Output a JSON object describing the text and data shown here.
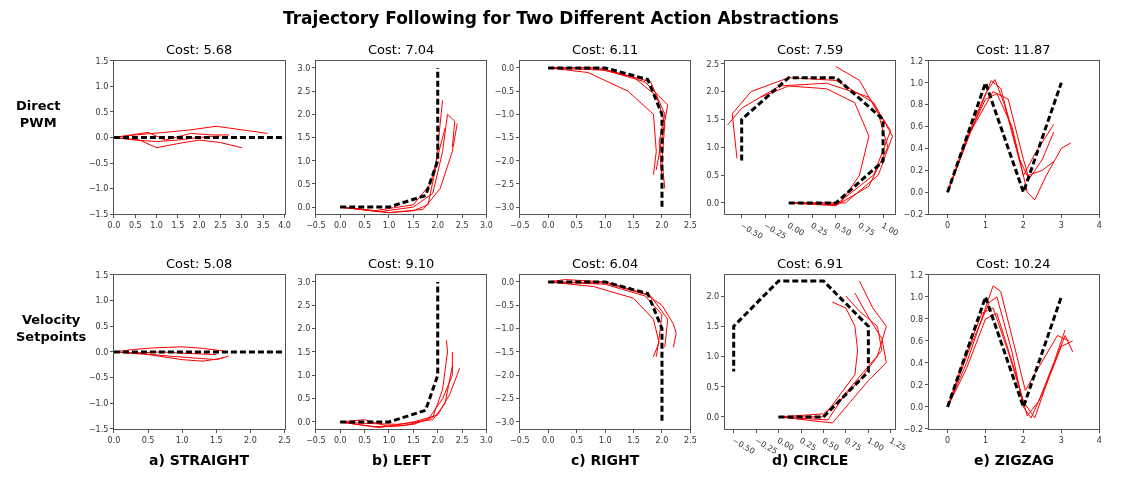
{
  "chart_data": [
    {
      "type": "line",
      "title": "Cost: 5.68",
      "ylabel": "Direct\nPWM",
      "annotations": [
        "Trajectory Following for Two Different Action Abstractions"
      ],
      "xlim": [
        0,
        4
      ],
      "xticks": [
        {
          "value": 0,
          "label": "0.0"
        },
        0.5,
        {
          "value": 1,
          "label": "1.0"
        },
        1.5,
        {
          "value": 2,
          "label": "2.0"
        },
        2.5,
        {
          "value": 3,
          "label": "3.0"
        },
        3.5,
        {
          "value": 4,
          "label": "4.0"
        }
      ],
      "ylim": [
        -1.5,
        1.5
      ],
      "yticks": [
        {
          "value": -1.5,
          "label": "−1.5"
        },
        {
          "value": -1,
          "label": "−1.0"
        },
        {
          "value": -0.5,
          "label": "−0.5"
        },
        {
          "value": 0,
          "label": "0.0"
        },
        0.5,
        {
          "value": 1,
          "label": "1.0"
        },
        1.5
      ],
      "series": [
        {
          "color": "#ff0000",
          "line_style": "solid",
          "x": [
            0,
            0.5,
            1.2,
            1.8,
            2.4,
            3.0,
            3.6
          ],
          "values": [
            0,
            0.05,
            0.1,
            0.15,
            0.22,
            0.15,
            0.08
          ]
        },
        {
          "color": "#ff0000",
          "line_style": "solid",
          "x": [
            0,
            0.6,
            1.0,
            1.5,
            2.0,
            2.5,
            3.0
          ],
          "values": [
            0,
            -0.05,
            -0.2,
            -0.12,
            -0.05,
            -0.1,
            -0.2
          ]
        },
        {
          "color": "#ff0000",
          "line_style": "solid",
          "x": [
            0,
            0.8,
            1.2,
            1.8,
            2.3,
            2.7
          ],
          "values": [
            0,
            0.1,
            -0.05,
            0.08,
            0.05,
            0.05
          ]
        },
        {
          "color": "#ff0000",
          "line_style": "solid",
          "x": [
            0,
            0.5,
            1.0,
            1.5,
            2.0,
            2.5
          ],
          "values": [
            0,
            -0.05,
            -0.08,
            -0.05,
            0.0,
            0.03
          ]
        },
        {
          "color": "#000000",
          "line_style": "dashed",
          "x": [
            0,
            4
          ],
          "values": [
            0,
            0
          ]
        }
      ]
    },
    {
      "type": "line",
      "title": "Cost: 7.04",
      "xlim": [
        -0.5,
        3
      ],
      "xticks": [
        {
          "value": -0.5,
          "label": "−0.5"
        },
        {
          "value": 0,
          "label": "0.0"
        },
        0.5,
        {
          "value": 1,
          "label": "1.0"
        },
        1.5,
        {
          "value": 2,
          "label": "2.0"
        },
        2.5,
        {
          "value": 3,
          "label": "3.0"
        }
      ],
      "ylim": [
        -0.15,
        3.15
      ],
      "yticks": [
        {
          "value": 0,
          "label": "0.0"
        },
        0.5,
        {
          "value": 1,
          "label": "1.0"
        },
        1.5,
        {
          "value": 2,
          "label": "2.0"
        },
        2.5,
        {
          "value": 3,
          "label": "3.0"
        }
      ],
      "series": [
        {
          "color": "#ff0000",
          "line_style": "solid",
          "x": [
            0,
            0.5,
            1,
            1.5,
            1.8,
            1.95,
            2.05,
            2.1
          ],
          "values": [
            0,
            -0.05,
            -0.12,
            -0.08,
            0.05,
            0.8,
            1.8,
            2.3
          ]
        },
        {
          "color": "#ff0000",
          "line_style": "solid",
          "x": [
            0,
            0.8,
            1.5,
            1.9,
            2.1,
            2.2,
            2.35,
            2.3
          ],
          "values": [
            0,
            -0.1,
            0,
            0.3,
            1.2,
            2.0,
            1.85,
            1.3
          ]
        },
        {
          "color": "#ff0000",
          "line_style": "solid",
          "x": [
            0,
            1,
            1.7,
            2.05,
            2.3,
            2.4
          ],
          "values": [
            0,
            -0.12,
            -0.05,
            0.4,
            1.2,
            1.8
          ]
        },
        {
          "color": "#ff0000",
          "line_style": "solid",
          "x": [
            0,
            0.7,
            1.5,
            1.85,
            2.0,
            2.15
          ],
          "values": [
            0,
            -0.08,
            0.05,
            0.5,
            1.1,
            1.7
          ]
        },
        {
          "color": "#000000",
          "line_style": "dashed",
          "x": [
            0,
            1,
            1.75,
            2,
            2
          ],
          "values": [
            0,
            0,
            0.25,
            1,
            3
          ]
        }
      ]
    },
    {
      "type": "line",
      "title": "Cost: 6.11",
      "xlim": [
        -0.5,
        2.5
      ],
      "xticks": [
        {
          "value": -0.5,
          "label": "−0.5"
        },
        {
          "value": 0,
          "label": "0.0"
        },
        0.5,
        {
          "value": 1,
          "label": "1.0"
        },
        1.5,
        {
          "value": 2,
          "label": "2.0"
        },
        2.5
      ],
      "ylim": [
        -3.15,
        0.15
      ],
      "yticks": [
        {
          "value": -3,
          "label": "−3.0"
        },
        {
          "value": -2.5,
          "label": "−2.5"
        },
        {
          "value": -2,
          "label": "−2.0"
        },
        {
          "value": -1.5,
          "label": "−1.5"
        },
        {
          "value": -1,
          "label": "−1.0"
        },
        {
          "value": -0.5,
          "label": "−0.5"
        },
        {
          "value": 0,
          "label": "0.0"
        }
      ],
      "series": [
        {
          "color": "#ff0000",
          "line_style": "solid",
          "x": [
            0,
            0.8,
            1.5,
            1.9,
            2.05,
            2.0,
            2.05
          ],
          "values": [
            0,
            0,
            -0.2,
            -0.6,
            -1.2,
            -2.0,
            -2.6
          ]
        },
        {
          "color": "#ff0000",
          "line_style": "solid",
          "x": [
            0,
            1,
            1.7,
            2.1,
            2.0,
            1.9
          ],
          "values": [
            0,
            -0.05,
            -0.3,
            -0.8,
            -1.5,
            -2.2
          ]
        },
        {
          "color": "#ff0000",
          "line_style": "solid",
          "x": [
            0,
            0.7,
            1.4,
            1.85,
            1.9,
            1.85
          ],
          "values": [
            0,
            -0.1,
            -0.5,
            -1.0,
            -1.8,
            -2.3
          ]
        },
        {
          "color": "#ff0000",
          "line_style": "solid",
          "x": [
            0,
            0.9,
            1.8,
            2.05,
            1.95,
            2.0
          ],
          "values": [
            0,
            0,
            -0.3,
            -1.0,
            -1.6,
            -2.4
          ]
        },
        {
          "color": "#000000",
          "line_style": "dashed",
          "x": [
            0,
            1,
            1.75,
            2,
            2
          ],
          "values": [
            0,
            0,
            -0.25,
            -1,
            -3
          ]
        }
      ]
    },
    {
      "type": "line",
      "title": "Cost: 7.59",
      "xlim": [
        -0.68,
        1.13
      ],
      "xticks": [
        {
          "value": -0.5,
          "label": "−0.50"
        },
        {
          "value": -0.25,
          "label": "−0.25"
        },
        {
          "value": 0,
          "label": "0.00"
        },
        0.25,
        {
          "value": 0.5,
          "label": "0.50"
        },
        0.75,
        {
          "value": 1,
          "label": "1.00"
        }
      ],
      "ylim": [
        -0.2,
        2.55
      ],
      "yticks": [
        {
          "value": 0,
          "label": "0.0"
        },
        0.5,
        {
          "value": 1,
          "label": "1.0"
        },
        1.5,
        {
          "value": 2,
          "label": "2.0"
        },
        2.5
      ],
      "series": [
        {
          "color": "#ff0000",
          "line_style": "solid",
          "x": [
            0,
            0.5,
            0.85,
            1.05,
            0.95,
            0.75,
            0.5
          ],
          "values": [
            0,
            -0.05,
            0.3,
            1.0,
            1.6,
            2.2,
            2.45
          ]
        },
        {
          "color": "#ff0000",
          "line_style": "solid",
          "x": [
            0,
            0.6,
            0.95,
            1.1,
            0.9,
            0.5,
            0,
            -0.4,
            -0.6,
            -0.55
          ],
          "values": [
            0,
            0,
            0.5,
            1.2,
            1.8,
            2.2,
            2.25,
            2.0,
            1.6,
            0.8
          ]
        },
        {
          "color": "#ff0000",
          "line_style": "solid",
          "x": [
            0,
            0.5,
            0.9,
            1.08,
            0.85,
            0.4,
            -0.1,
            -0.5,
            -0.65
          ],
          "values": [
            0,
            -0.03,
            0.5,
            1.3,
            1.9,
            2.15,
            2.1,
            1.7,
            1.4
          ]
        },
        {
          "color": "#ff0000",
          "line_style": "solid",
          "x": [
            0,
            0.55,
            0.75,
            0.85,
            0.7,
            0.4,
            0,
            -0.3
          ],
          "values": [
            0,
            0,
            0.5,
            1.2,
            1.8,
            2.05,
            2.1,
            1.9
          ]
        },
        {
          "color": "#000000",
          "line_style": "dashed",
          "x": [
            0,
            0.5,
            1,
            1,
            0.5,
            0,
            -0.5,
            -0.5
          ],
          "values": [
            0,
            0,
            0.75,
            1.5,
            2.25,
            2.25,
            1.5,
            0.75
          ]
        }
      ]
    },
    {
      "type": "line",
      "title": "Cost: 11.87",
      "xlim": [
        -0.5,
        4
      ],
      "xticks": [
        0,
        1,
        2,
        3,
        4
      ],
      "ylim": [
        -0.2,
        1.2
      ],
      "yticks": [
        {
          "value": -0.2,
          "label": "−0.2"
        },
        {
          "value": 0,
          "label": "0.0"
        },
        0.2,
        0.4,
        0.6,
        0.8,
        {
          "value": 1,
          "label": "1.0"
        },
        1.2
      ],
      "series": [
        {
          "color": "#ff0000",
          "line_style": "solid",
          "x": [
            0,
            0.5,
            1.0,
            1.25,
            1.5,
            2.0,
            2.3,
            2.8
          ],
          "values": [
            0,
            0.5,
            0.9,
            1.03,
            0.8,
            0.15,
            0.35,
            0.62
          ]
        },
        {
          "color": "#ff0000",
          "line_style": "solid",
          "x": [
            0,
            0.6,
            1.2,
            1.6,
            2.0,
            2.15,
            2.5,
            2.8
          ],
          "values": [
            0,
            0.55,
            0.92,
            0.85,
            0.3,
            0.12,
            0.3,
            0.55
          ]
        },
        {
          "color": "#ff0000",
          "line_style": "solid",
          "x": [
            0,
            0.5,
            1.0,
            1.3,
            1.7,
            2.1,
            2.3,
            2.6,
            3.0,
            3.25
          ],
          "values": [
            0,
            0.48,
            0.85,
            0.9,
            0.6,
            0.0,
            -0.07,
            0.15,
            0.4,
            0.45
          ]
        },
        {
          "color": "#ff0000",
          "line_style": "solid",
          "x": [
            0,
            0.55,
            1.15,
            1.4,
            1.9,
            2.1,
            2.5,
            2.8
          ],
          "values": [
            0,
            0.5,
            1.02,
            0.95,
            0.3,
            0.15,
            0.2,
            0.28
          ]
        },
        {
          "color": "#000000",
          "line_style": "dashed",
          "x": [
            0,
            1,
            2,
            3
          ],
          "values": [
            0,
            1,
            0,
            1
          ]
        }
      ]
    },
    {
      "type": "line",
      "title": "Cost: 5.08",
      "ylabel": "Velocity\nSetpoints",
      "xlabel": "a) STRAIGHT",
      "xlim": [
        0,
        2.5
      ],
      "xticks": [
        {
          "value": 0,
          "label": "0.0"
        },
        0.5,
        {
          "value": 1,
          "label": "1.0"
        },
        1.5,
        {
          "value": 2,
          "label": "2.0"
        },
        2.5
      ],
      "ylim": [
        -1.5,
        1.5
      ],
      "yticks": [
        {
          "value": -1.5,
          "label": "−1.5"
        },
        {
          "value": -1,
          "label": "−1.0"
        },
        {
          "value": -0.5,
          "label": "−0.5"
        },
        {
          "value": 0,
          "label": "0.0"
        },
        0.5,
        {
          "value": 1,
          "label": "1.0"
        },
        1.5
      ],
      "series": [
        {
          "color": "#ff0000",
          "line_style": "solid",
          "x": [
            0,
            0.3,
            0.6,
            1.0,
            1.3,
            1.6
          ],
          "values": [
            0,
            0.05,
            0.08,
            0.1,
            0.07,
            0.02
          ]
        },
        {
          "color": "#ff0000",
          "line_style": "solid",
          "x": [
            0,
            0.4,
            0.8,
            1.2,
            1.5,
            1.68
          ],
          "values": [
            0,
            -0.03,
            -0.08,
            -0.12,
            -0.15,
            -0.08
          ]
        },
        {
          "color": "#ff0000",
          "line_style": "solid",
          "x": [
            0,
            0.5,
            1.0,
            1.3,
            1.6
          ],
          "values": [
            0,
            -0.05,
            -0.15,
            -0.18,
            -0.12
          ]
        },
        {
          "color": "#ff0000",
          "line_style": "solid",
          "x": [
            0,
            0.3,
            0.7,
            1.1,
            1.5
          ],
          "values": [
            0,
            -0.02,
            0.0,
            -0.03,
            -0.05
          ]
        },
        {
          "color": "#000000",
          "line_style": "dashed",
          "x": [
            0,
            2.5
          ],
          "values": [
            0,
            0
          ]
        }
      ]
    },
    {
      "type": "line",
      "title": "Cost: 9.10",
      "xlabel": "b) LEFT",
      "xlim": [
        -0.5,
        3
      ],
      "xticks": [
        {
          "value": -0.5,
          "label": "−0.5"
        },
        {
          "value": 0,
          "label": "0.0"
        },
        0.5,
        {
          "value": 1,
          "label": "1.0"
        },
        1.5,
        {
          "value": 2,
          "label": "2.0"
        },
        2.5,
        {
          "value": 3,
          "label": "3.0"
        }
      ],
      "ylim": [
        -0.15,
        3.15
      ],
      "yticks": [
        {
          "value": 0,
          "label": "0.0"
        },
        0.5,
        {
          "value": 1,
          "label": "1.0"
        },
        1.5,
        {
          "value": 2,
          "label": "2.0"
        },
        2.5,
        {
          "value": 3,
          "label": "3.0"
        }
      ],
      "series": [
        {
          "color": "#ff0000",
          "line_style": "solid",
          "x": [
            0,
            0.5,
            1,
            1.5,
            1.9,
            2.1,
            2.2,
            2.18
          ],
          "values": [
            0,
            0.05,
            -0.1,
            -0.05,
            0.1,
            0.7,
            1.5,
            1.75
          ]
        },
        {
          "color": "#ff0000",
          "line_style": "solid",
          "x": [
            0,
            0.7,
            1.3,
            1.8,
            2.1,
            2.3,
            2.3
          ],
          "values": [
            0,
            -0.1,
            -0.08,
            0.05,
            0.5,
            1.0,
            1.5
          ]
        },
        {
          "color": "#ff0000",
          "line_style": "solid",
          "x": [
            0,
            0.8,
            1.5,
            2.0,
            2.25,
            2.45
          ],
          "values": [
            0,
            -0.12,
            0,
            0.15,
            0.6,
            1.15
          ]
        },
        {
          "color": "#ff0000",
          "line_style": "solid",
          "x": [
            0,
            0.5,
            1.2,
            1.9,
            2.15,
            2.3
          ],
          "values": [
            0,
            -0.03,
            -0.05,
            0.05,
            0.4,
            1.2
          ]
        },
        {
          "color": "#000000",
          "line_style": "dashed",
          "x": [
            0,
            1,
            1.75,
            2,
            2
          ],
          "values": [
            0,
            0,
            0.25,
            1,
            3
          ]
        }
      ]
    },
    {
      "type": "line",
      "title": "Cost: 6.04",
      "xlabel": "c) RIGHT",
      "xlim": [
        -0.5,
        2.5
      ],
      "xticks": [
        {
          "value": -0.5,
          "label": "−0.5"
        },
        {
          "value": 0,
          "label": "0.0"
        },
        0.5,
        {
          "value": 1,
          "label": "1.0"
        },
        1.5,
        {
          "value": 2,
          "label": "2.0"
        },
        2.5
      ],
      "ylim": [
        -3.15,
        0.15
      ],
      "yticks": [
        {
          "value": -3,
          "label": "−3.0"
        },
        {
          "value": -2.5,
          "label": "−2.5"
        },
        {
          "value": -2,
          "label": "−2.0"
        },
        {
          "value": -1.5,
          "label": "−1.5"
        },
        {
          "value": -1,
          "label": "−1.0"
        },
        {
          "value": -0.5,
          "label": "−0.5"
        },
        {
          "value": 0,
          "label": "0.0"
        }
      ],
      "series": [
        {
          "color": "#ff0000",
          "line_style": "solid",
          "x": [
            0,
            0.3,
            1,
            1.7,
            2.0,
            2.2,
            2.25,
            2.2
          ],
          "values": [
            0,
            0.05,
            0,
            -0.25,
            -0.5,
            -0.9,
            -1.1,
            -1.4
          ]
        },
        {
          "color": "#ff0000",
          "line_style": "solid",
          "x": [
            0,
            1,
            1.7,
            2.0,
            1.95,
            1.9
          ],
          "values": [
            0,
            -0.05,
            -0.3,
            -0.7,
            -1.2,
            -1.6
          ]
        },
        {
          "color": "#ff0000",
          "line_style": "solid",
          "x": [
            0,
            0.8,
            1.5,
            1.85,
            1.95,
            1.85
          ],
          "values": [
            0,
            -0.1,
            -0.35,
            -0.8,
            -1.3,
            -1.6
          ]
        },
        {
          "color": "#ff0000",
          "line_style": "solid",
          "x": [
            0,
            1,
            1.8,
            2.1,
            2.05
          ],
          "values": [
            0,
            -0.02,
            -0.3,
            -0.8,
            -1.4
          ]
        },
        {
          "color": "#000000",
          "line_style": "dashed",
          "x": [
            0,
            1,
            1.75,
            2,
            2
          ],
          "values": [
            0,
            0,
            -0.25,
            -1,
            -3
          ]
        }
      ]
    },
    {
      "type": "line",
      "title": "Cost: 6.91",
      "xlabel": "d) CIRCLE",
      "xlim": [
        -0.6,
        1.3
      ],
      "xticks": [
        {
          "value": -0.5,
          "label": "−0.50"
        },
        {
          "value": -0.25,
          "label": "−0.25"
        },
        {
          "value": 0,
          "label": "0.00"
        },
        0.25,
        {
          "value": 0.5,
          "label": "0.50"
        },
        0.75,
        {
          "value": 1,
          "label": "1.00"
        },
        1.25
      ],
      "ylim": [
        -0.2,
        2.35
      ],
      "yticks": [
        {
          "value": 0,
          "label": "0.0"
        },
        0.5,
        {
          "value": 1,
          "label": "1.0"
        },
        1.5,
        {
          "value": 2,
          "label": "2.0"
        }
      ],
      "series": [
        {
          "color": "#ff0000",
          "line_style": "solid",
          "x": [
            0,
            0.5,
            0.7,
            0.9,
            1.1,
            1.2,
            1.05,
            0.9
          ],
          "values": [
            0,
            0.05,
            0.3,
            0.6,
            1.0,
            1.5,
            1.8,
            2.25
          ]
        },
        {
          "color": "#ff0000",
          "line_style": "solid",
          "x": [
            0,
            0.55,
            0.75,
            0.95,
            1.15,
            1.1,
            0.9,
            0.75
          ],
          "values": [
            0,
            -0.05,
            0.4,
            0.75,
            1.1,
            1.5,
            1.75,
            2.0
          ]
        },
        {
          "color": "#ff0000",
          "line_style": "solid",
          "x": [
            0,
            0.6,
            0.8,
            1.0,
            1.2,
            1.15,
            1.0,
            0.85
          ],
          "values": [
            0,
            -0.1,
            0.25,
            0.6,
            0.9,
            1.3,
            1.65,
            2.05
          ]
        },
        {
          "color": "#ff0000",
          "line_style": "solid",
          "x": [
            0,
            0.5,
            0.7,
            0.85,
            0.88,
            0.85,
            0.75,
            0.6
          ],
          "values": [
            0,
            0.0,
            0.4,
            0.7,
            1.1,
            1.5,
            1.8,
            1.9
          ]
        },
        {
          "color": "#000000",
          "line_style": "dashed",
          "x": [
            0,
            0.5,
            1,
            1,
            0.5,
            0,
            -0.5,
            -0.5
          ],
          "values": [
            0,
            0,
            0.75,
            1.5,
            2.25,
            2.25,
            1.5,
            0.75
          ]
        }
      ]
    },
    {
      "type": "line",
      "title": "Cost: 10.24",
      "xlabel": "e) ZIGZAG",
      "xlim": [
        -0.5,
        4
      ],
      "xticks": [
        0,
        1,
        2,
        3,
        4
      ],
      "ylim": [
        -0.2,
        1.2
      ],
      "yticks": [
        {
          "value": -0.2,
          "label": "−0.2"
        },
        {
          "value": 0,
          "label": "0.0"
        },
        0.2,
        0.4,
        0.6,
        0.8,
        {
          "value": 1,
          "label": "1.0"
        },
        1.2
      ],
      "series": [
        {
          "color": "#ff0000",
          "line_style": "solid",
          "x": [
            0,
            0.5,
            1.0,
            1.2,
            1.4,
            1.8,
            2.05,
            2.3,
            2.9,
            3.2
          ],
          "values": [
            0,
            0.4,
            0.9,
            1.1,
            1.05,
            0.5,
            0.15,
            0.3,
            0.65,
            0.6
          ]
        },
        {
          "color": "#ff0000",
          "line_style": "solid",
          "x": [
            0,
            0.6,
            1.1,
            1.3,
            1.7,
            2.0,
            2.2,
            2.6,
            3.0,
            3.3
          ],
          "values": [
            0,
            0.55,
            0.95,
            1.0,
            0.5,
            0.0,
            -0.1,
            0.2,
            0.55,
            0.6
          ]
        },
        {
          "color": "#ff0000",
          "line_style": "solid",
          "x": [
            0,
            0.5,
            1.0,
            1.3,
            1.8,
            2.1,
            2.4,
            2.8,
            3.1
          ],
          "values": [
            0,
            0.35,
            0.8,
            0.85,
            0.3,
            -0.08,
            0.05,
            0.4,
            0.7
          ]
        },
        {
          "color": "#ff0000",
          "line_style": "solid",
          "x": [
            0,
            0.4,
            0.9,
            1.2,
            1.6,
            2.0,
            2.3,
            2.7,
            3.1,
            3.3
          ],
          "values": [
            0,
            0.4,
            0.85,
            0.9,
            0.5,
            0.05,
            -0.1,
            0.3,
            0.65,
            0.5
          ]
        },
        {
          "color": "#000000",
          "line_style": "dashed",
          "x": [
            0,
            1,
            2,
            3
          ],
          "values": [
            0,
            1,
            0,
            1
          ]
        }
      ]
    }
  ]
}
